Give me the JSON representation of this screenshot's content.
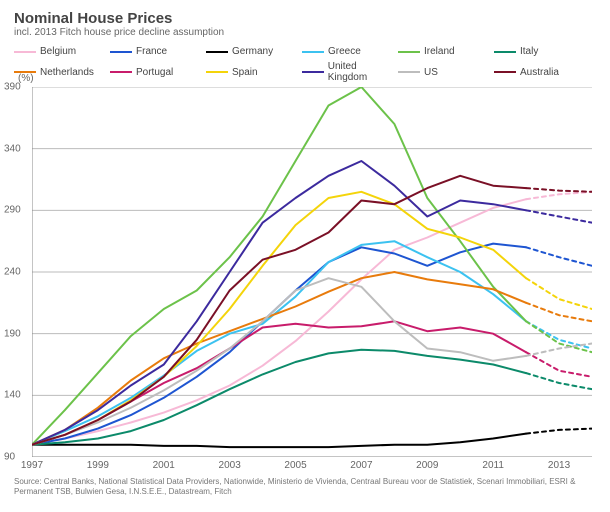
{
  "title": "Nominal House Prices",
  "subtitle": "incl. 2013 Fitch house price decline assumption",
  "ylabel": "(%)",
  "footer": "Source: Central Banks, National Statistical Data Providers, Nationwide, Ministerio de Vivienda, Centraal Bureau voor de Statistiek, Scenari Immobiliari, ESRI & Permanent TSB, Bulwien Gesa, I.N.S.E.E., Datastream, Fitch",
  "chart": {
    "type": "line",
    "background": "#ffffff",
    "grid_color": "#bbbbbb",
    "axis_color": "#888888",
    "stroke_width": 2,
    "x": {
      "min": 1997,
      "max": 2014,
      "ticks": [
        1997,
        1999,
        2001,
        2003,
        2005,
        2007,
        2009,
        2011,
        2013
      ]
    },
    "y": {
      "min": 90,
      "max": 390,
      "ticks": [
        90,
        140,
        190,
        240,
        290,
        340,
        390
      ]
    },
    "projection_start": 2012,
    "series": [
      {
        "name": "Belgium",
        "color": "#f7b9d6",
        "data": [
          [
            1997,
            100
          ],
          [
            1998,
            105
          ],
          [
            1999,
            111
          ],
          [
            2000,
            118
          ],
          [
            2001,
            126
          ],
          [
            2002,
            136
          ],
          [
            2003,
            148
          ],
          [
            2004,
            164
          ],
          [
            2005,
            184
          ],
          [
            2006,
            208
          ],
          [
            2007,
            234
          ],
          [
            2008,
            258
          ],
          [
            2009,
            268
          ],
          [
            2010,
            280
          ],
          [
            2011,
            292
          ],
          [
            2012,
            299
          ],
          [
            2013,
            303
          ],
          [
            2014,
            305
          ]
        ]
      },
      {
        "name": "France",
        "color": "#1e55d1",
        "data": [
          [
            1997,
            100
          ],
          [
            1998,
            105
          ],
          [
            1999,
            113
          ],
          [
            2000,
            124
          ],
          [
            2001,
            138
          ],
          [
            2002,
            155
          ],
          [
            2003,
            175
          ],
          [
            2004,
            200
          ],
          [
            2005,
            225
          ],
          [
            2006,
            248
          ],
          [
            2007,
            260
          ],
          [
            2008,
            255
          ],
          [
            2009,
            245
          ],
          [
            2010,
            256
          ],
          [
            2011,
            263
          ],
          [
            2012,
            260
          ],
          [
            2013,
            252
          ],
          [
            2014,
            245
          ]
        ]
      },
      {
        "name": "Germany",
        "color": "#000000",
        "data": [
          [
            1997,
            100
          ],
          [
            1998,
            100
          ],
          [
            1999,
            100
          ],
          [
            2000,
            100
          ],
          [
            2001,
            99
          ],
          [
            2002,
            99
          ],
          [
            2003,
            98
          ],
          [
            2004,
            98
          ],
          [
            2005,
            98
          ],
          [
            2006,
            98
          ],
          [
            2007,
            99
          ],
          [
            2008,
            100
          ],
          [
            2009,
            100
          ],
          [
            2010,
            102
          ],
          [
            2011,
            105
          ],
          [
            2012,
            109
          ],
          [
            2013,
            112
          ],
          [
            2014,
            113
          ]
        ]
      },
      {
        "name": "Greece",
        "color": "#3cc2f0",
        "data": [
          [
            1997,
            100
          ],
          [
            1998,
            111
          ],
          [
            1999,
            123
          ],
          [
            2000,
            138
          ],
          [
            2001,
            156
          ],
          [
            2002,
            176
          ],
          [
            2003,
            190
          ],
          [
            2004,
            198
          ],
          [
            2005,
            220
          ],
          [
            2006,
            248
          ],
          [
            2007,
            262
          ],
          [
            2008,
            265
          ],
          [
            2009,
            252
          ],
          [
            2010,
            240
          ],
          [
            2011,
            222
          ],
          [
            2012,
            200
          ],
          [
            2013,
            185
          ],
          [
            2014,
            178
          ]
        ]
      },
      {
        "name": "Ireland",
        "color": "#6cc24a",
        "data": [
          [
            1997,
            100
          ],
          [
            1998,
            128
          ],
          [
            1999,
            158
          ],
          [
            2000,
            188
          ],
          [
            2001,
            210
          ],
          [
            2002,
            225
          ],
          [
            2003,
            252
          ],
          [
            2004,
            285
          ],
          [
            2005,
            330
          ],
          [
            2006,
            375
          ],
          [
            2007,
            390
          ],
          [
            2008,
            360
          ],
          [
            2009,
            300
          ],
          [
            2010,
            265
          ],
          [
            2011,
            228
          ],
          [
            2012,
            200
          ],
          [
            2013,
            182
          ],
          [
            2014,
            175
          ]
        ]
      },
      {
        "name": "Italy",
        "color": "#0c8a6a",
        "data": [
          [
            1997,
            100
          ],
          [
            1998,
            102
          ],
          [
            1999,
            105
          ],
          [
            2000,
            111
          ],
          [
            2001,
            120
          ],
          [
            2002,
            132
          ],
          [
            2003,
            145
          ],
          [
            2004,
            157
          ],
          [
            2005,
            167
          ],
          [
            2006,
            174
          ],
          [
            2007,
            177
          ],
          [
            2008,
            176
          ],
          [
            2009,
            172
          ],
          [
            2010,
            169
          ],
          [
            2011,
            165
          ],
          [
            2012,
            158
          ],
          [
            2013,
            150
          ],
          [
            2014,
            145
          ]
        ]
      },
      {
        "name": "Netherlands",
        "color": "#e87b0c",
        "data": [
          [
            1997,
            100
          ],
          [
            1998,
            112
          ],
          [
            1999,
            130
          ],
          [
            2000,
            152
          ],
          [
            2001,
            170
          ],
          [
            2002,
            182
          ],
          [
            2003,
            192
          ],
          [
            2004,
            202
          ],
          [
            2005,
            212
          ],
          [
            2006,
            224
          ],
          [
            2007,
            235
          ],
          [
            2008,
            240
          ],
          [
            2009,
            234
          ],
          [
            2010,
            230
          ],
          [
            2011,
            226
          ],
          [
            2012,
            215
          ],
          [
            2013,
            205
          ],
          [
            2014,
            200
          ]
        ]
      },
      {
        "name": "Portugal",
        "color": "#c81c6b",
        "data": [
          [
            1997,
            100
          ],
          [
            1998,
            108
          ],
          [
            1999,
            120
          ],
          [
            2000,
            135
          ],
          [
            2001,
            150
          ],
          [
            2002,
            162
          ],
          [
            2003,
            178
          ],
          [
            2004,
            195
          ],
          [
            2005,
            198
          ],
          [
            2006,
            195
          ],
          [
            2007,
            196
          ],
          [
            2008,
            200
          ],
          [
            2009,
            192
          ],
          [
            2010,
            195
          ],
          [
            2011,
            190
          ],
          [
            2012,
            175
          ],
          [
            2013,
            160
          ],
          [
            2014,
            155
          ]
        ]
      },
      {
        "name": "Spain",
        "color": "#f4d40a",
        "data": [
          [
            1997,
            100
          ],
          [
            1998,
            108
          ],
          [
            1999,
            120
          ],
          [
            2000,
            136
          ],
          [
            2001,
            155
          ],
          [
            2002,
            180
          ],
          [
            2003,
            210
          ],
          [
            2004,
            245
          ],
          [
            2005,
            278
          ],
          [
            2006,
            300
          ],
          [
            2007,
            305
          ],
          [
            2008,
            295
          ],
          [
            2009,
            275
          ],
          [
            2010,
            268
          ],
          [
            2011,
            258
          ],
          [
            2012,
            235
          ],
          [
            2013,
            218
          ],
          [
            2014,
            210
          ]
        ]
      },
      {
        "name": "United Kingdom",
        "color": "#3c2a9e",
        "data": [
          [
            1997,
            100
          ],
          [
            1998,
            112
          ],
          [
            1999,
            128
          ],
          [
            2000,
            148
          ],
          [
            2001,
            165
          ],
          [
            2002,
            200
          ],
          [
            2003,
            240
          ],
          [
            2004,
            280
          ],
          [
            2005,
            300
          ],
          [
            2006,
            318
          ],
          [
            2007,
            330
          ],
          [
            2008,
            310
          ],
          [
            2009,
            285
          ],
          [
            2010,
            298
          ],
          [
            2011,
            295
          ],
          [
            2012,
            290
          ],
          [
            2013,
            285
          ],
          [
            2014,
            280
          ]
        ]
      },
      {
        "name": "US",
        "color": "#bdbdbd",
        "data": [
          [
            1997,
            100
          ],
          [
            1998,
            108
          ],
          [
            1999,
            118
          ],
          [
            2000,
            130
          ],
          [
            2001,
            144
          ],
          [
            2002,
            160
          ],
          [
            2003,
            178
          ],
          [
            2004,
            200
          ],
          [
            2005,
            225
          ],
          [
            2006,
            235
          ],
          [
            2007,
            228
          ],
          [
            2008,
            200
          ],
          [
            2009,
            178
          ],
          [
            2010,
            175
          ],
          [
            2011,
            168
          ],
          [
            2012,
            172
          ],
          [
            2013,
            178
          ],
          [
            2014,
            182
          ]
        ]
      },
      {
        "name": "Australia",
        "color": "#7a1026",
        "data": [
          [
            1997,
            100
          ],
          [
            1998,
            108
          ],
          [
            1999,
            120
          ],
          [
            2000,
            135
          ],
          [
            2001,
            155
          ],
          [
            2002,
            185
          ],
          [
            2003,
            225
          ],
          [
            2004,
            250
          ],
          [
            2005,
            258
          ],
          [
            2006,
            272
          ],
          [
            2007,
            298
          ],
          [
            2008,
            295
          ],
          [
            2009,
            308
          ],
          [
            2010,
            318
          ],
          [
            2011,
            310
          ],
          [
            2012,
            308
          ],
          [
            2013,
            306
          ],
          [
            2014,
            305
          ]
        ]
      }
    ]
  }
}
